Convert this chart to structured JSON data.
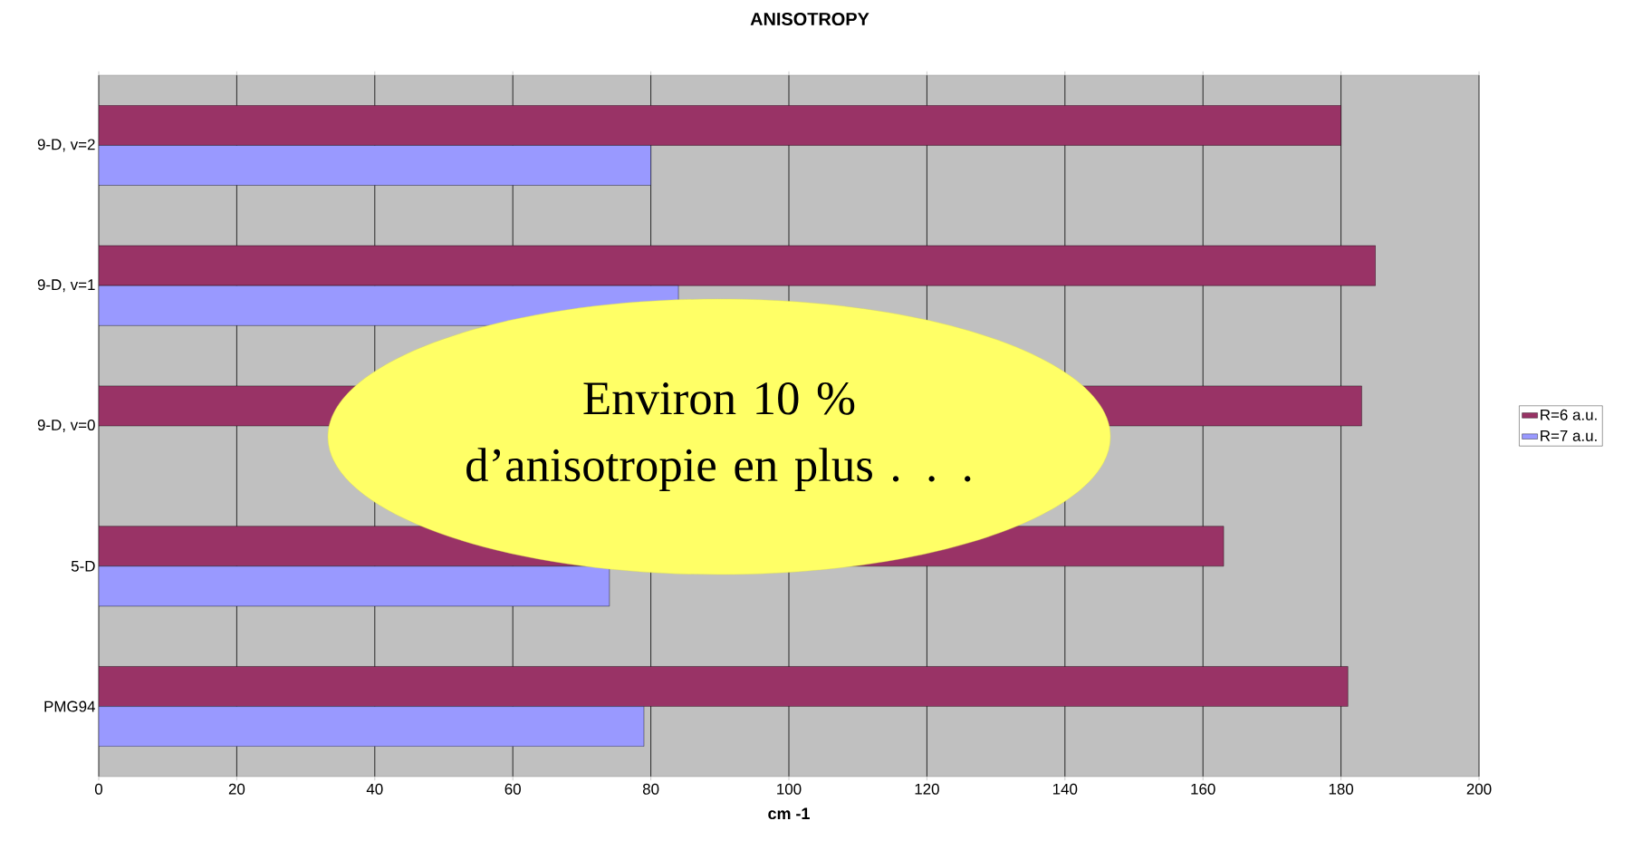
{
  "chart_data": {
    "type": "bar",
    "orientation": "horizontal",
    "title": "ANISOTROPY",
    "xlabel": "cm -1",
    "categories": [
      "9-D, v=2",
      "9-D, v=1",
      "9-D, v=0",
      "5-D",
      "PMG94"
    ],
    "series": [
      {
        "name": "R=6 a.u.",
        "color": "#993366",
        "values": [
          180,
          185,
          183,
          163,
          181
        ]
      },
      {
        "name": "R=7 a.u.",
        "color": "#9999ff",
        "values": [
          80,
          84,
          null,
          74,
          79
        ]
      }
    ],
    "xlim": [
      0,
      200
    ],
    "xticks": [
      0,
      20,
      40,
      60,
      80,
      100,
      120,
      140,
      160,
      180,
      200
    ],
    "grid": "x",
    "legend": "right",
    "annotations": [
      "Environ 10 % d’anisotropie en plus . . ."
    ]
  }
}
